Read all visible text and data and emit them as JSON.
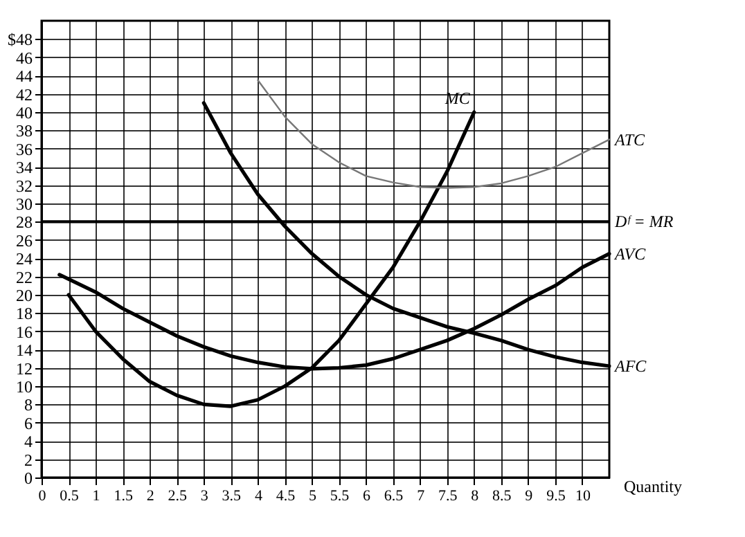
{
  "chart_data": {
    "type": "line",
    "xlabel": "Quantity",
    "xlim": [
      0,
      10.5
    ],
    "xticks": [
      0,
      0.5,
      1,
      1.5,
      2,
      2.5,
      3,
      3.5,
      4,
      4.5,
      5,
      5.5,
      6,
      6.5,
      7,
      7.5,
      8,
      8.5,
      9,
      9.5,
      10
    ],
    "ylim": [
      0,
      50
    ],
    "yticks": [
      0,
      2,
      4,
      6,
      8,
      10,
      12,
      14,
      16,
      18,
      20,
      22,
      24,
      26,
      28,
      30,
      32,
      34,
      36,
      38,
      40,
      42,
      44,
      46,
      {
        "value": 48,
        "label": "$48"
      }
    ],
    "grid": true,
    "marker": "none",
    "series": [
      {
        "name": "MC",
        "color": "#000000",
        "x": [
          0.5,
          1,
          1.5,
          2,
          2.5,
          3,
          3.5,
          4,
          4.5,
          5,
          5.5,
          6,
          6.5,
          7,
          7.5,
          8
        ],
        "values": [
          20,
          16,
          13,
          10.5,
          9,
          8,
          7.8,
          8.5,
          10,
          12,
          15,
          19,
          23,
          28,
          33.5,
          40
        ]
      },
      {
        "name": "ATC",
        "color": "#777777",
        "x": [
          4,
          4.5,
          5,
          5.5,
          6,
          6.5,
          7,
          7.5,
          8,
          8.5,
          9,
          9.5,
          10,
          10.5
        ],
        "values": [
          43.5,
          39.5,
          36.5,
          34.5,
          33,
          32.3,
          31.8,
          31.7,
          31.8,
          32.2,
          33,
          34,
          35.5,
          37
        ]
      },
      {
        "name": "AVC",
        "color": "#000000",
        "x": [
          0.33,
          1,
          1.5,
          2,
          2.5,
          3,
          3.5,
          4,
          4.5,
          5,
          5.5,
          6,
          6.5,
          7,
          7.5,
          8,
          8.5,
          9,
          9.5,
          10,
          10.5
        ],
        "values": [
          22.2,
          20.3,
          18.5,
          17,
          15.5,
          14.3,
          13.3,
          12.6,
          12.1,
          11.9,
          12,
          12.3,
          13,
          14,
          15,
          16.3,
          17.8,
          19.5,
          21,
          23,
          24.5
        ]
      },
      {
        "name": "AFC",
        "color": "#000000",
        "x": [
          3,
          3.5,
          4,
          4.5,
          5,
          5.5,
          6,
          6.5,
          7,
          7.5,
          8,
          8.5,
          9,
          9.5,
          10,
          10.5
        ],
        "values": [
          41,
          35.5,
          31,
          27.5,
          24.5,
          22,
          20,
          18.5,
          17.5,
          16.5,
          15.8,
          15,
          14,
          13.2,
          12.6,
          12.2
        ]
      }
    ],
    "ref_lines": [
      {
        "axis": "y",
        "value": 28,
        "label": "Dᶠ = MR",
        "color": "#000000",
        "line_style": "solid"
      }
    ]
  }
}
